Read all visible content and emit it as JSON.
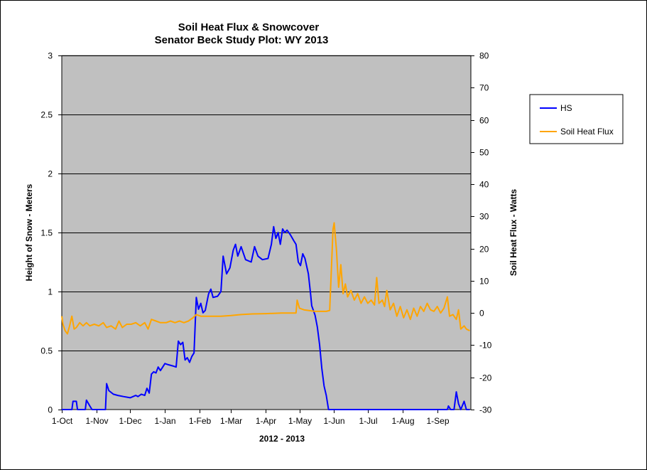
{
  "chart_data": {
    "type": "line",
    "title": "Soil Heat Flux & Snowcover",
    "subtitle": "Senator Beck Study Plot: WY 2013",
    "xlabel": "2012 - 2013",
    "ylabel_left": "Height of Snow - Meters",
    "ylabel_right": "Soil Heat Flux - Watts",
    "x_ticks": [
      "1-Oct",
      "1-Nov",
      "1-Dec",
      "1-Jan",
      "1-Feb",
      "1-Mar",
      "1-Apr",
      "1-May",
      "1-Jun",
      "1-Jul",
      "1-Aug",
      "1-Sep"
    ],
    "x_range": [
      "2012-10-01",
      "2013-09-30"
    ],
    "y_left_range": [
      0,
      3
    ],
    "y_left_ticks": [
      "0",
      "0.5",
      "1",
      "1.5",
      "2",
      "2.5",
      "3"
    ],
    "y_right_range": [
      -30,
      80
    ],
    "y_right_ticks": [
      "-30",
      "-20",
      "-10",
      "0",
      "10",
      "20",
      "30",
      "40",
      "50",
      "60",
      "70",
      "80"
    ],
    "grid": "horizontal",
    "plot_background": "#c0c0c0",
    "legend_position": "right",
    "series": [
      {
        "name": "HS",
        "axis": "left",
        "color": "#0000ff",
        "points": [
          [
            "2012-10-01",
            0.0
          ],
          [
            "2012-10-10",
            0.0
          ],
          [
            "2012-10-11",
            0.07
          ],
          [
            "2012-10-14",
            0.07
          ],
          [
            "2012-10-15",
            0.0
          ],
          [
            "2012-10-22",
            0.0
          ],
          [
            "2012-10-23",
            0.08
          ],
          [
            "2012-10-26",
            0.03
          ],
          [
            "2012-10-28",
            0.0
          ],
          [
            "2012-11-09",
            0.0
          ],
          [
            "2012-11-10",
            0.22
          ],
          [
            "2012-11-12",
            0.16
          ],
          [
            "2012-11-16",
            0.13
          ],
          [
            "2012-11-20",
            0.12
          ],
          [
            "2012-11-25",
            0.11
          ],
          [
            "2012-12-01",
            0.1
          ],
          [
            "2012-12-06",
            0.12
          ],
          [
            "2012-12-08",
            0.11
          ],
          [
            "2012-12-11",
            0.13
          ],
          [
            "2012-12-14",
            0.12
          ],
          [
            "2012-12-16",
            0.18
          ],
          [
            "2012-12-18",
            0.14
          ],
          [
            "2012-12-20",
            0.3
          ],
          [
            "2012-12-22",
            0.32
          ],
          [
            "2012-12-24",
            0.31
          ],
          [
            "2012-12-26",
            0.36
          ],
          [
            "2012-12-28",
            0.33
          ],
          [
            "2013-01-01",
            0.39
          ],
          [
            "2013-01-04",
            0.38
          ],
          [
            "2013-01-08",
            0.37
          ],
          [
            "2013-01-11",
            0.36
          ],
          [
            "2013-01-13",
            0.58
          ],
          [
            "2013-01-15",
            0.55
          ],
          [
            "2013-01-17",
            0.57
          ],
          [
            "2013-01-19",
            0.42
          ],
          [
            "2013-01-21",
            0.44
          ],
          [
            "2013-01-23",
            0.4
          ],
          [
            "2013-01-25",
            0.45
          ],
          [
            "2013-01-27",
            0.48
          ],
          [
            "2013-01-29",
            0.95
          ],
          [
            "2013-01-31",
            0.85
          ],
          [
            "2013-02-02",
            0.9
          ],
          [
            "2013-02-04",
            0.82
          ],
          [
            "2013-02-06",
            0.84
          ],
          [
            "2013-02-09",
            0.98
          ],
          [
            "2013-02-11",
            1.02
          ],
          [
            "2013-02-13",
            0.95
          ],
          [
            "2013-02-17",
            0.96
          ],
          [
            "2013-02-20",
            1.0
          ],
          [
            "2013-02-22",
            1.3
          ],
          [
            "2013-02-25",
            1.15
          ],
          [
            "2013-02-28",
            1.2
          ],
          [
            "2013-03-03",
            1.35
          ],
          [
            "2013-03-05",
            1.4
          ],
          [
            "2013-03-07",
            1.3
          ],
          [
            "2013-03-10",
            1.38
          ],
          [
            "2013-03-14",
            1.27
          ],
          [
            "2013-03-19",
            1.25
          ],
          [
            "2013-03-22",
            1.38
          ],
          [
            "2013-03-25",
            1.3
          ],
          [
            "2013-03-29",
            1.27
          ],
          [
            "2013-04-03",
            1.28
          ],
          [
            "2013-04-06",
            1.4
          ],
          [
            "2013-04-08",
            1.55
          ],
          [
            "2013-04-10",
            1.45
          ],
          [
            "2013-04-12",
            1.5
          ],
          [
            "2013-04-14",
            1.4
          ],
          [
            "2013-04-16",
            1.53
          ],
          [
            "2013-04-18",
            1.5
          ],
          [
            "2013-04-20",
            1.52
          ],
          [
            "2013-04-23",
            1.48
          ],
          [
            "2013-04-26",
            1.43
          ],
          [
            "2013-04-28",
            1.4
          ],
          [
            "2013-04-30",
            1.25
          ],
          [
            "2013-05-02",
            1.22
          ],
          [
            "2013-05-04",
            1.32
          ],
          [
            "2013-05-06",
            1.28
          ],
          [
            "2013-05-09",
            1.15
          ],
          [
            "2013-05-11",
            0.98
          ],
          [
            "2013-05-12",
            0.88
          ],
          [
            "2013-05-15",
            0.8
          ],
          [
            "2013-05-17",
            0.7
          ],
          [
            "2013-05-19",
            0.55
          ],
          [
            "2013-05-21",
            0.35
          ],
          [
            "2013-05-23",
            0.2
          ],
          [
            "2013-05-25",
            0.12
          ],
          [
            "2013-05-27",
            0.0
          ],
          [
            "2013-09-10",
            0.0
          ],
          [
            "2013-09-11",
            0.03
          ],
          [
            "2013-09-13",
            0.0
          ],
          [
            "2013-09-16",
            0.0
          ],
          [
            "2013-09-18",
            0.15
          ],
          [
            "2013-09-20",
            0.05
          ],
          [
            "2013-09-22",
            0.0
          ],
          [
            "2013-09-25",
            0.07
          ],
          [
            "2013-09-27",
            0.0
          ],
          [
            "2013-09-30",
            0.0
          ]
        ]
      },
      {
        "name": "Soil Heat Flux",
        "axis": "right",
        "color": "#ffa500",
        "points": [
          [
            "2012-10-01",
            -1.0
          ],
          [
            "2012-10-02",
            -3.5
          ],
          [
            "2012-10-04",
            -5.5
          ],
          [
            "2012-10-06",
            -6.5
          ],
          [
            "2012-10-08",
            -4.0
          ],
          [
            "2012-10-10",
            -1.0
          ],
          [
            "2012-10-12",
            -5.0
          ],
          [
            "2012-10-14",
            -4.5
          ],
          [
            "2012-10-17",
            -3.0
          ],
          [
            "2012-10-20",
            -4.0
          ],
          [
            "2012-10-23",
            -3.0
          ],
          [
            "2012-10-26",
            -4.0
          ],
          [
            "2012-10-30",
            -3.5
          ],
          [
            "2012-11-03",
            -4.0
          ],
          [
            "2012-11-07",
            -3.0
          ],
          [
            "2012-11-10",
            -4.5
          ],
          [
            "2012-11-14",
            -4.0
          ],
          [
            "2012-11-18",
            -5.0
          ],
          [
            "2012-11-21",
            -2.5
          ],
          [
            "2012-11-24",
            -4.5
          ],
          [
            "2012-11-28",
            -3.5
          ],
          [
            "2012-12-02",
            -3.5
          ],
          [
            "2012-12-06",
            -3.0
          ],
          [
            "2012-12-10",
            -4.0
          ],
          [
            "2012-12-14",
            -3.0
          ],
          [
            "2012-12-17",
            -5.0
          ],
          [
            "2012-12-20",
            -2.0
          ],
          [
            "2012-12-24",
            -2.5
          ],
          [
            "2012-12-28",
            -3.0
          ],
          [
            "2013-01-02",
            -3.0
          ],
          [
            "2013-01-06",
            -2.5
          ],
          [
            "2013-01-10",
            -3.0
          ],
          [
            "2013-01-14",
            -2.5
          ],
          [
            "2013-01-18",
            -3.0
          ],
          [
            "2013-01-22",
            -2.5
          ],
          [
            "2013-01-26",
            -1.5
          ],
          [
            "2013-01-29",
            -0.5
          ],
          [
            "2013-02-02",
            -1.0
          ],
          [
            "2013-02-10",
            -1.0
          ],
          [
            "2013-02-20",
            -1.0
          ],
          [
            "2013-03-01",
            -0.8
          ],
          [
            "2013-03-10",
            -0.5
          ],
          [
            "2013-03-20",
            -0.3
          ],
          [
            "2013-04-01",
            -0.2
          ],
          [
            "2013-04-15",
            0.0
          ],
          [
            "2013-04-28",
            0.0
          ],
          [
            "2013-04-29",
            4.0
          ],
          [
            "2013-05-01",
            1.5
          ],
          [
            "2013-05-05",
            1.0
          ],
          [
            "2013-05-15",
            0.5
          ],
          [
            "2013-05-25",
            0.5
          ],
          [
            "2013-05-28",
            0.8
          ],
          [
            "2013-05-31",
            26.0
          ],
          [
            "2013-06-01",
            28.0
          ],
          [
            "2013-06-03",
            20.0
          ],
          [
            "2013-06-05",
            8.0
          ],
          [
            "2013-06-07",
            15.0
          ],
          [
            "2013-06-09",
            6.0
          ],
          [
            "2013-06-11",
            9.0
          ],
          [
            "2013-06-13",
            5.0
          ],
          [
            "2013-06-16",
            7.0
          ],
          [
            "2013-06-19",
            4.0
          ],
          [
            "2013-06-22",
            6.0
          ],
          [
            "2013-06-25",
            3.0
          ],
          [
            "2013-06-28",
            5.0
          ],
          [
            "2013-07-01",
            3.0
          ],
          [
            "2013-07-04",
            4.0
          ],
          [
            "2013-07-07",
            2.5
          ],
          [
            "2013-07-09",
            11.0
          ],
          [
            "2013-07-11",
            3.0
          ],
          [
            "2013-07-14",
            4.0
          ],
          [
            "2013-07-16",
            2.0
          ],
          [
            "2013-07-18",
            7.0
          ],
          [
            "2013-07-21",
            1.0
          ],
          [
            "2013-07-24",
            3.0
          ],
          [
            "2013-07-27",
            -1.0
          ],
          [
            "2013-07-30",
            2.0
          ],
          [
            "2013-08-02",
            -1.5
          ],
          [
            "2013-08-05",
            1.0
          ],
          [
            "2013-08-08",
            -2.0
          ],
          [
            "2013-08-11",
            1.5
          ],
          [
            "2013-08-14",
            -1.0
          ],
          [
            "2013-08-17",
            2.0
          ],
          [
            "2013-08-20",
            0.5
          ],
          [
            "2013-08-23",
            3.0
          ],
          [
            "2013-08-26",
            1.0
          ],
          [
            "2013-08-29",
            0.5
          ],
          [
            "2013-09-01",
            2.0
          ],
          [
            "2013-09-04",
            0.0
          ],
          [
            "2013-09-07",
            1.5
          ],
          [
            "2013-09-10",
            5.0
          ],
          [
            "2013-09-12",
            -1.0
          ],
          [
            "2013-09-15",
            -0.5
          ],
          [
            "2013-09-18",
            -2.0
          ],
          [
            "2013-09-20",
            1.0
          ],
          [
            "2013-09-22",
            -5.0
          ],
          [
            "2013-09-25",
            -4.0
          ],
          [
            "2013-09-27",
            -5.0
          ],
          [
            "2013-09-30",
            -5.5
          ]
        ]
      }
    ]
  }
}
